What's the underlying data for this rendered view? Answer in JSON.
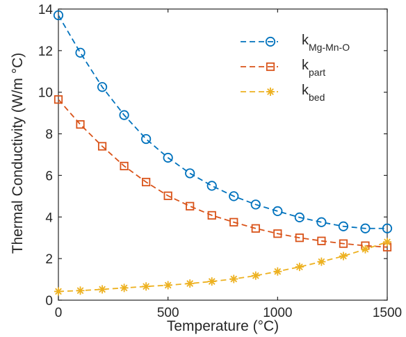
{
  "chart_data": {
    "type": "line",
    "xlabel": "Temperature (°C)",
    "ylabel": "Thermal Conductivity (W/m °C)",
    "xlim": [
      0,
      1500
    ],
    "ylim": [
      0,
      14
    ],
    "xticks": [
      0,
      500,
      1000,
      1500
    ],
    "yticks": [
      0,
      2,
      4,
      6,
      8,
      10,
      12,
      14
    ],
    "grid": false,
    "legend_position": "top-right",
    "x": [
      0,
      100,
      200,
      300,
      400,
      500,
      600,
      700,
      800,
      900,
      1000,
      1100,
      1200,
      1300,
      1400,
      1500
    ],
    "series": [
      {
        "name": "k",
        "name_sub": "Mg-Mn-O",
        "marker": "circle",
        "color": "#0072BD",
        "values": [
          13.7,
          11.9,
          10.25,
          8.9,
          7.75,
          6.85,
          6.1,
          5.5,
          5.0,
          4.6,
          4.28,
          3.98,
          3.75,
          3.55,
          3.45,
          3.45
        ]
      },
      {
        "name": "k",
        "name_sub": "part",
        "marker": "square",
        "color": "#D95319",
        "values": [
          9.65,
          8.45,
          7.4,
          6.45,
          5.68,
          5.02,
          4.52,
          4.08,
          3.75,
          3.45,
          3.2,
          3.0,
          2.85,
          2.72,
          2.62,
          2.55
        ]
      },
      {
        "name": "k",
        "name_sub": "bed",
        "marker": "asterisk",
        "color": "#EDB120",
        "values": [
          0.42,
          0.46,
          0.52,
          0.59,
          0.66,
          0.72,
          0.8,
          0.9,
          1.02,
          1.18,
          1.38,
          1.6,
          1.85,
          2.12,
          2.45,
          2.8
        ]
      }
    ]
  }
}
